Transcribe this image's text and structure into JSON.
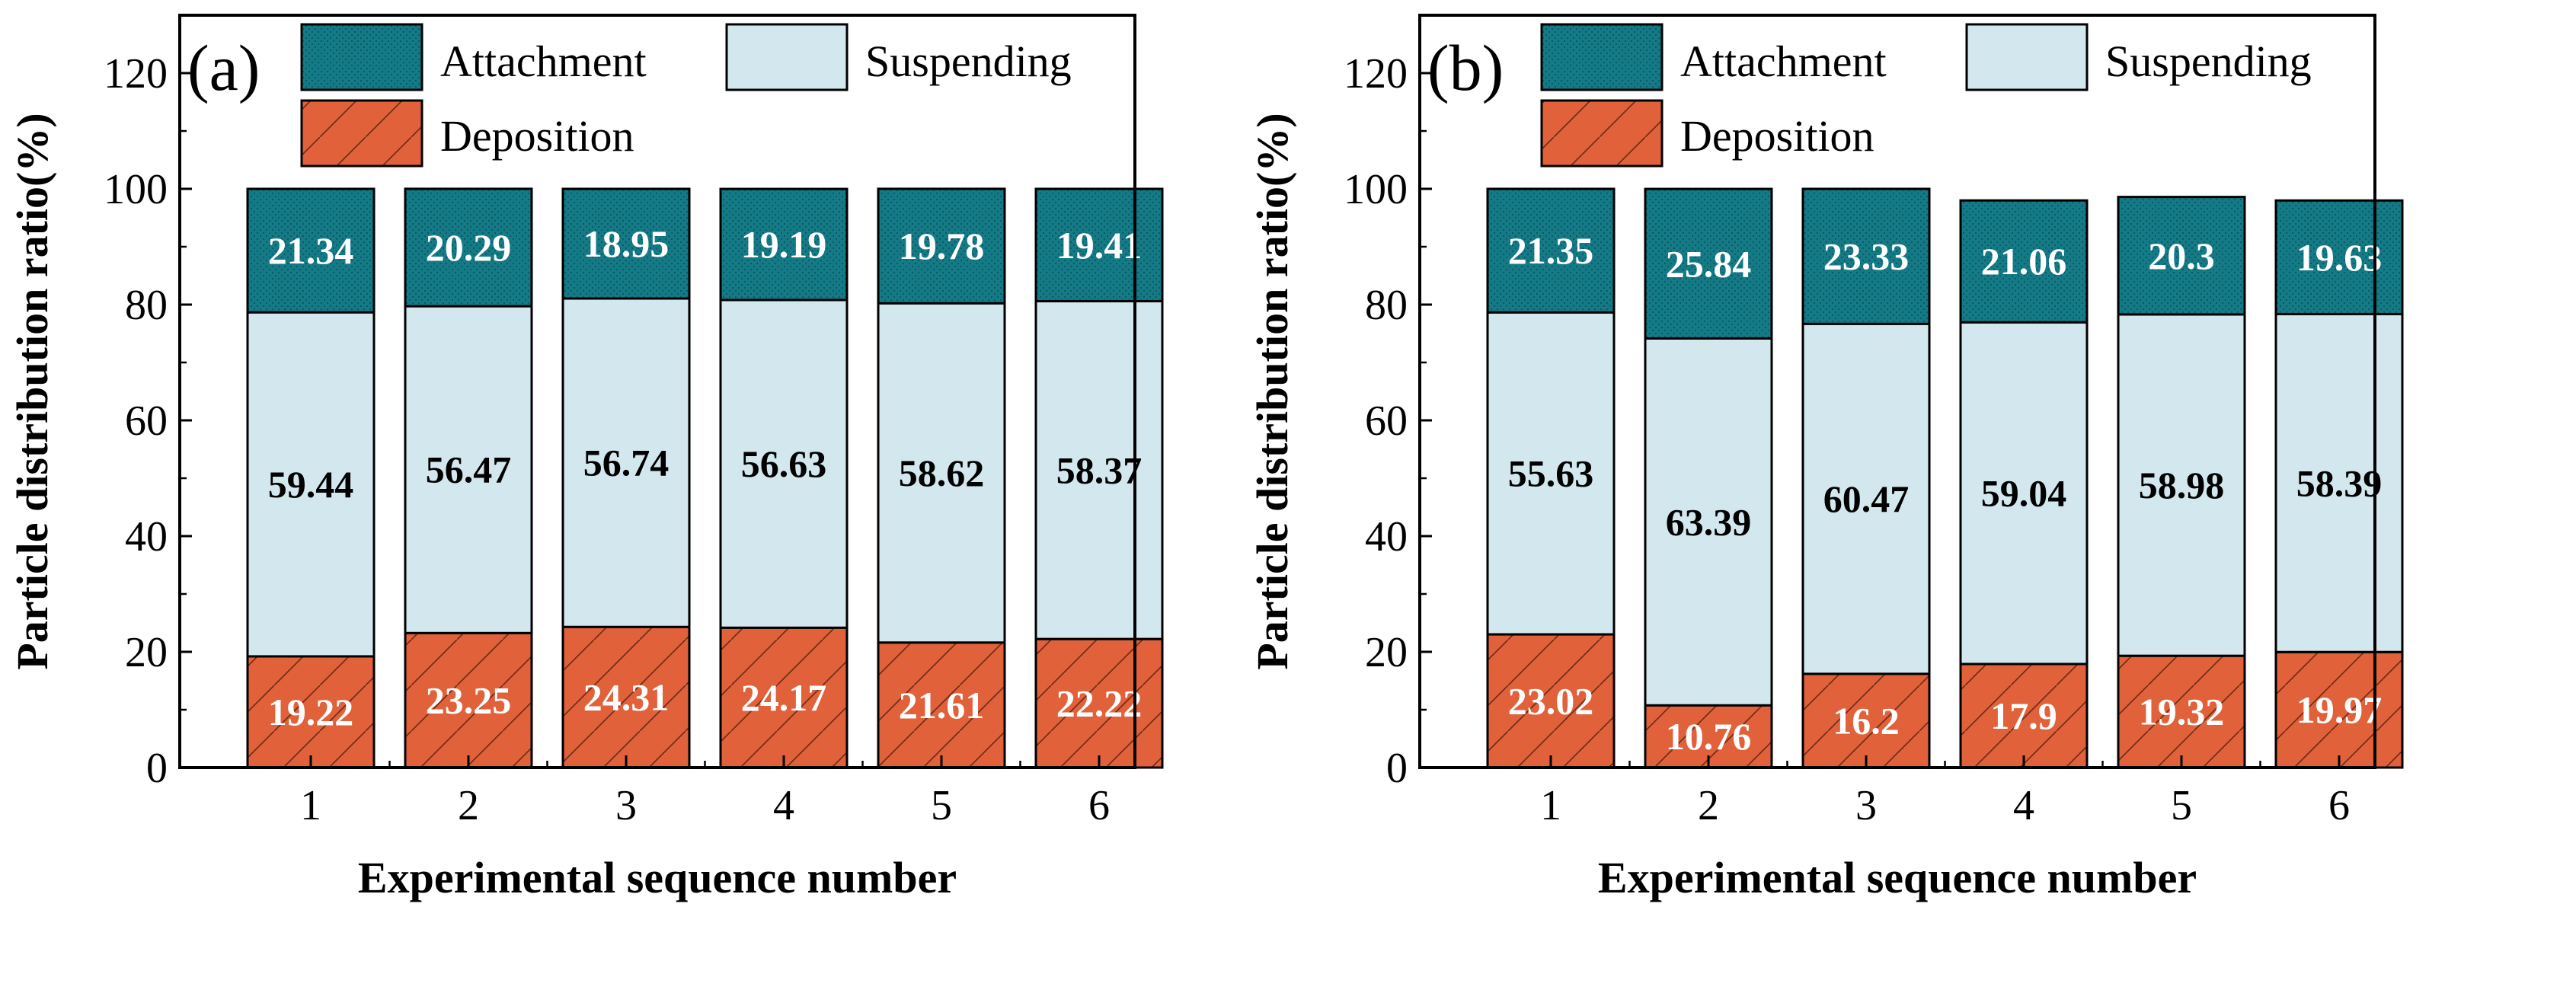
{
  "colors": {
    "attachment": "#137a86",
    "suspending": "#d3e8ee",
    "deposition": "#e0613a",
    "border": "#000000"
  },
  "legend": {
    "attachment": "Attachment",
    "suspending": "Suspending",
    "deposition": "Deposition"
  },
  "chart_data": [
    {
      "type": "bar",
      "panel_label": "(a)",
      "stacked": true,
      "categories": [
        "1",
        "2",
        "3",
        "4",
        "5",
        "6"
      ],
      "series": [
        {
          "name": "Deposition",
          "values": [
            19.22,
            23.25,
            24.31,
            24.17,
            21.61,
            22.22
          ],
          "labels": [
            "19.22",
            "23.25",
            "24.31",
            "24.17",
            "21.61",
            "22.22"
          ]
        },
        {
          "name": "Suspending",
          "values": [
            59.44,
            56.47,
            56.74,
            56.63,
            58.62,
            58.37
          ],
          "labels": [
            "59.44",
            "56.47",
            "56.74",
            "56.63",
            "58.62",
            "58.37"
          ]
        },
        {
          "name": "Attachment",
          "values": [
            21.34,
            20.29,
            18.95,
            19.19,
            19.78,
            19.41
          ],
          "labels": [
            "21.34",
            "20.29",
            "18.95",
            "19.19",
            "19.78",
            "19.41"
          ]
        }
      ],
      "xlabel": "Experimental sequence number",
      "ylabel": "Particle distribution ratio(%)",
      "ylim": [
        0,
        130
      ],
      "yticks": [
        0,
        20,
        40,
        60,
        80,
        100,
        120
      ],
      "legend_position": "top"
    },
    {
      "type": "bar",
      "panel_label": "(b)",
      "stacked": true,
      "categories": [
        "1",
        "2",
        "3",
        "4",
        "5",
        "6"
      ],
      "series": [
        {
          "name": "Deposition",
          "values": [
            23.02,
            10.76,
            16.2,
            17.9,
            19.32,
            19.97
          ],
          "labels": [
            "23.02",
            "10.76",
            "16.2",
            "17.9",
            "19.32",
            "19.97"
          ]
        },
        {
          "name": "Suspending",
          "values": [
            55.63,
            63.39,
            60.47,
            59.04,
            58.98,
            58.39
          ],
          "labels": [
            "55.63",
            "63.39",
            "60.47",
            "59.04",
            "58.98",
            "58.39"
          ]
        },
        {
          "name": "Attachment",
          "values": [
            21.35,
            25.84,
            23.33,
            21.06,
            20.3,
            19.63
          ],
          "labels": [
            "21.35",
            "25.84",
            "23.33",
            "21.06",
            "20.3",
            "19.63"
          ]
        }
      ],
      "xlabel": "Experimental sequence number",
      "ylabel": "Particle distribution ratio(%)",
      "ylim": [
        0,
        130
      ],
      "yticks": [
        0,
        20,
        40,
        60,
        80,
        100,
        120
      ],
      "legend_position": "top"
    }
  ]
}
